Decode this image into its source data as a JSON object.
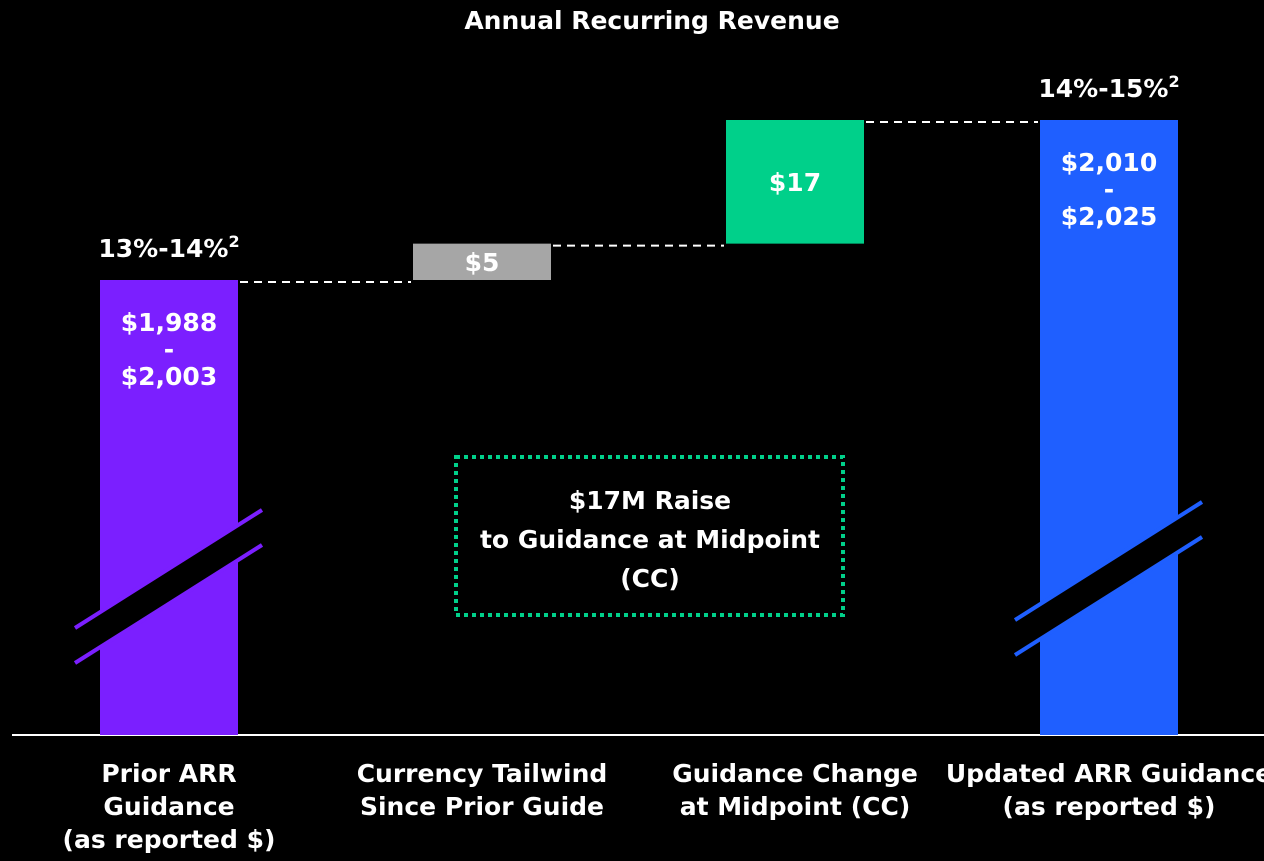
{
  "chart_data": {
    "type": "waterfall",
    "title": "Annual Recurring Revenue",
    "categories": [
      [
        "Prior ARR",
        "Guidance",
        "(as reported $)"
      ],
      [
        "Currency Tailwind",
        "Since Prior Guide"
      ],
      [
        "Guidance Change",
        "at Midpoint (CC)"
      ],
      [
        "Updated ARR Guidance",
        "(as reported $)"
      ]
    ],
    "bars": [
      {
        "kind": "total",
        "low": 1988,
        "high": 2003,
        "color": "#7b1fff",
        "labels": [
          "$1,988",
          "-",
          "$2,003"
        ],
        "growth": "13%-14%",
        "footnote": "2"
      },
      {
        "kind": "delta",
        "value": 5,
        "label": "$5",
        "color": "#a6a6a6"
      },
      {
        "kind": "delta",
        "value": 17,
        "label": "$17",
        "color": "#00d08a"
      },
      {
        "kind": "total",
        "low": 2010,
        "high": 2025,
        "color": "#1f5fff",
        "labels": [
          "$2,010",
          "-",
          "$2,025"
        ],
        "growth": "14%-15%",
        "footnote": "2"
      }
    ],
    "annotation": [
      "$17M Raise",
      "to Guidance at Midpoint",
      "(CC)"
    ]
  }
}
